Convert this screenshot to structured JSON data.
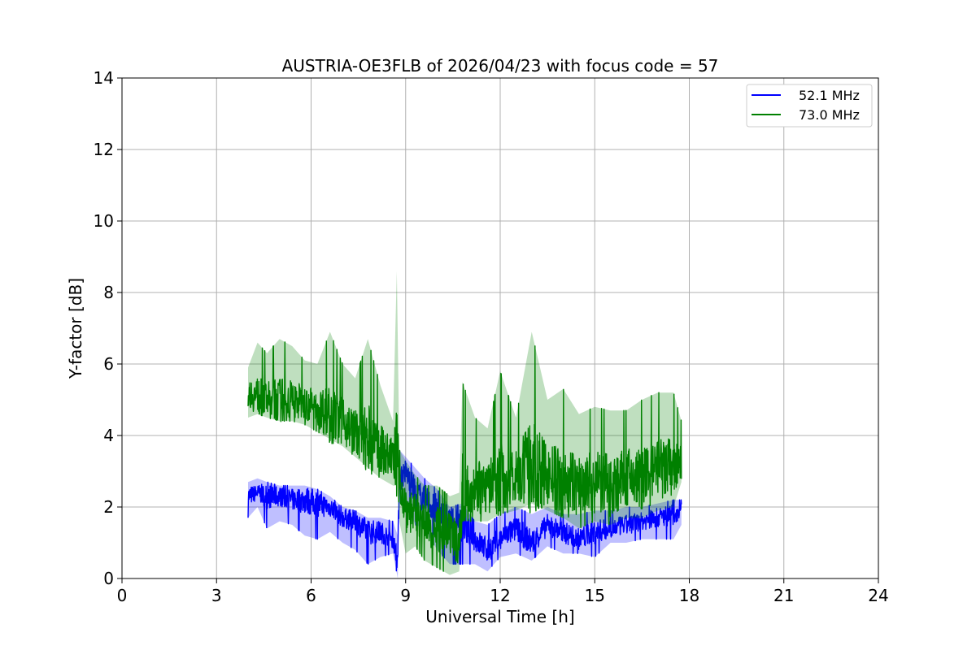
{
  "chart_data": {
    "type": "line",
    "title": "AUSTRIA-OE3FLB of 2026/04/23 with focus code = 57",
    "xlabel": "Universal Time [h]",
    "ylabel": "Y-factor [dB]",
    "xlim": [
      0,
      24
    ],
    "ylim": [
      0,
      14
    ],
    "xticks": [
      0,
      3,
      6,
      9,
      12,
      15,
      18,
      21,
      24
    ],
    "yticks": [
      0,
      2,
      4,
      6,
      8,
      10,
      12,
      14
    ],
    "grid": true,
    "legend_position": "top-right",
    "series": [
      {
        "name": "52.1 MHz",
        "color": "#0000ff",
        "x": [
          4.0,
          4.3,
          4.6,
          5.0,
          5.4,
          5.8,
          6.2,
          6.6,
          7.0,
          7.4,
          7.8,
          8.2,
          8.6,
          8.75,
          8.8,
          9.0,
          9.3,
          9.6,
          10.0,
          10.4,
          10.8,
          11.2,
          11.6,
          12.0,
          12.5,
          13.0,
          13.5,
          14.0,
          14.5,
          15.0,
          15.5,
          16.0,
          16.5,
          17.0,
          17.5,
          17.75
        ],
        "values": [
          2.3,
          2.4,
          2.3,
          2.3,
          2.2,
          2.2,
          2.1,
          2.0,
          1.7,
          1.6,
          1.3,
          1.3,
          1.1,
          0.5,
          2.8,
          3.0,
          2.4,
          2.2,
          1.9,
          1.6,
          1.5,
          1.1,
          0.8,
          1.1,
          1.4,
          1.0,
          1.5,
          1.3,
          1.1,
          1.3,
          1.4,
          1.5,
          1.6,
          1.7,
          1.8,
          1.9
        ],
        "upper": [
          2.7,
          2.8,
          2.7,
          2.6,
          2.6,
          2.6,
          2.5,
          2.3,
          2.0,
          1.9,
          1.7,
          1.7,
          1.6,
          1.2,
          3.6,
          3.4,
          3.1,
          2.8,
          2.5,
          2.0,
          2.1,
          1.6,
          1.5,
          1.8,
          2.0,
          1.8,
          2.0,
          1.8,
          1.8,
          1.9,
          1.9,
          2.0,
          2.0,
          2.1,
          2.2,
          2.2
        ],
        "lower": [
          1.7,
          2.0,
          1.4,
          1.6,
          1.5,
          1.2,
          1.1,
          1.3,
          1.0,
          0.8,
          0.4,
          0.6,
          0.7,
          0.0,
          2.1,
          2.2,
          1.5,
          1.4,
          0.8,
          0.4,
          0.4,
          0.4,
          0.2,
          0.6,
          0.7,
          0.5,
          0.9,
          0.7,
          0.7,
          0.6,
          1.0,
          1.0,
          1.1,
          1.1,
          1.1,
          1.5
        ]
      },
      {
        "name": "73.0 MHz",
        "color": "#008000",
        "x": [
          4.0,
          4.3,
          4.6,
          5.0,
          5.4,
          5.8,
          6.2,
          6.6,
          7.0,
          7.4,
          7.8,
          8.2,
          8.6,
          8.72,
          8.8,
          9.0,
          9.3,
          9.6,
          10.0,
          10.4,
          10.7,
          10.8,
          11.2,
          11.6,
          12.0,
          12.5,
          13.0,
          13.5,
          14.0,
          14.5,
          15.0,
          15.5,
          16.0,
          16.5,
          17.0,
          17.5,
          17.75
        ],
        "values": [
          5.2,
          5.1,
          5.0,
          5.0,
          5.0,
          4.9,
          4.8,
          4.6,
          4.4,
          4.1,
          3.9,
          3.6,
          3.4,
          3.2,
          2.8,
          2.0,
          1.8,
          1.5,
          1.4,
          1.2,
          1.0,
          2.5,
          2.6,
          2.5,
          2.8,
          2.9,
          3.1,
          2.9,
          2.7,
          2.6,
          2.7,
          2.6,
          2.8,
          2.8,
          3.0,
          3.1,
          3.2
        ],
        "upper": [
          5.9,
          6.6,
          6.3,
          6.7,
          6.5,
          6.1,
          6.0,
          6.9,
          6.0,
          5.6,
          6.7,
          5.4,
          4.4,
          8.6,
          3.6,
          3.3,
          2.9,
          2.6,
          2.6,
          2.3,
          2.4,
          5.5,
          4.5,
          4.2,
          5.8,
          4.5,
          6.9,
          5.0,
          5.3,
          4.6,
          4.8,
          4.7,
          4.7,
          5.0,
          5.2,
          5.2,
          4.4
        ],
        "lower": [
          4.5,
          4.6,
          4.5,
          4.4,
          4.4,
          4.3,
          4.1,
          3.9,
          3.7,
          3.4,
          3.1,
          2.8,
          2.6,
          2.6,
          1.6,
          0.7,
          0.9,
          0.5,
          0.3,
          0.1,
          0.2,
          1.6,
          1.6,
          1.6,
          1.8,
          1.9,
          2.1,
          1.9,
          1.7,
          1.4,
          1.6,
          1.5,
          1.7,
          1.7,
          1.9,
          2.0,
          2.7
        ]
      }
    ]
  }
}
